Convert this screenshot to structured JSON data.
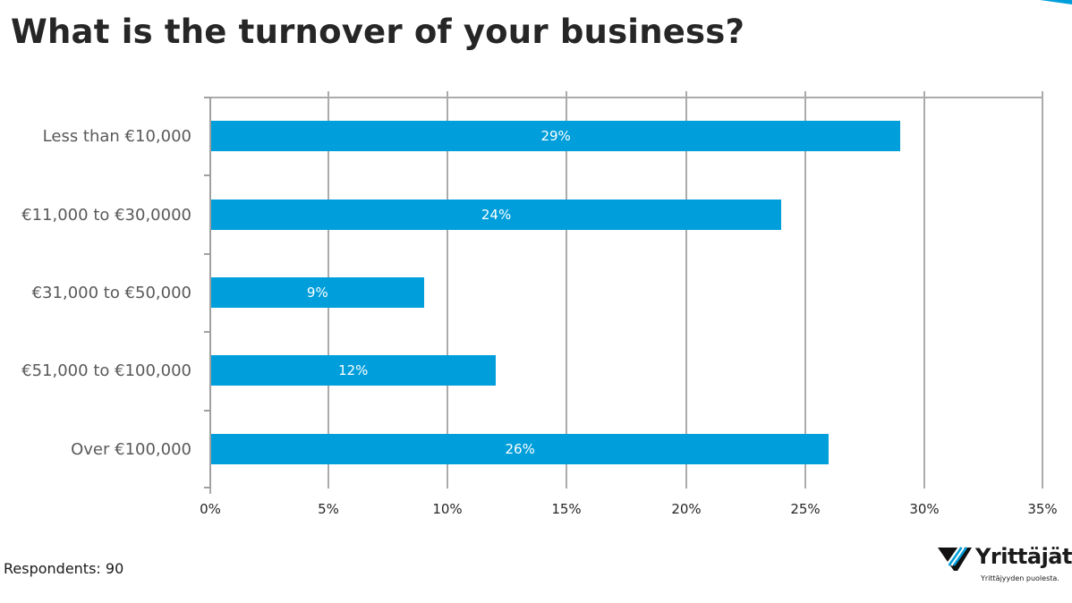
{
  "title": "What is the turnover of your business?",
  "footer": {
    "respondents": "Respondents: 90"
  },
  "logo": {
    "name": "Yrittäjät",
    "tagline": "Yrittäjyyden puolesta.",
    "accent": "#009fdb"
  },
  "colors": {
    "bar": "#009fdb",
    "grid": "#ababab",
    "accent": "#009fdb"
  },
  "chart_data": {
    "type": "bar",
    "orientation": "horizontal",
    "title": "What is the turnover of your business?",
    "categories": [
      "Less than €10,000",
      "€11,000 to €30,0000",
      "€31,000 to €50,000",
      "€51,000 to €100,000",
      "Over €100,000"
    ],
    "values": [
      29,
      24,
      9,
      12,
      26
    ],
    "value_labels": [
      "29%",
      "24%",
      "9%",
      "12%",
      "26%"
    ],
    "xlabel": "",
    "ylabel": "",
    "xlim": [
      0,
      35
    ],
    "x_ticks": [
      "0%",
      "5%",
      "10%",
      "15%",
      "20%",
      "25%",
      "30%",
      "35%"
    ],
    "grid": true,
    "legend": null,
    "note": "Respondents: 90"
  }
}
